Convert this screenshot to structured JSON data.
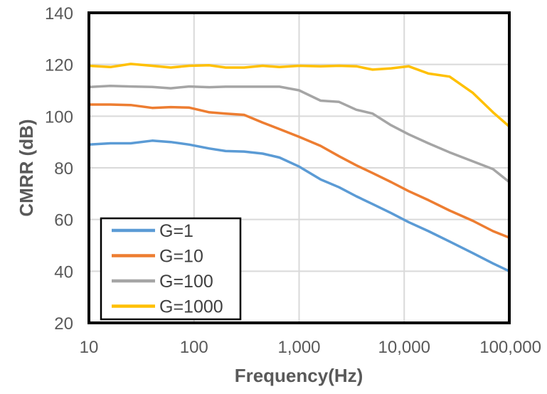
{
  "chart_data": {
    "type": "line",
    "title": "",
    "xlabel": "Frequency(Hz)",
    "ylabel": "CMRR (dB)",
    "xscale": "log",
    "xlim": [
      10,
      100000
    ],
    "ylim": [
      20,
      140
    ],
    "xticks": [
      10,
      100,
      1000,
      10000,
      100000
    ],
    "xtick_labels": [
      "10",
      "100",
      "1,000",
      "10,000",
      "100,000"
    ],
    "yticks": [
      20,
      40,
      60,
      80,
      100,
      120,
      140
    ],
    "ytick_labels": [
      "20",
      "40",
      "60",
      "80",
      "100",
      "120",
      "140"
    ],
    "grid": true,
    "legend_position": "bottom-left",
    "series": [
      {
        "name": "G=1",
        "color": "#5B9BD5",
        "x": [
          10,
          16,
          25,
          40,
          60,
          90,
          140,
          200,
          300,
          450,
          650,
          1000,
          1600,
          2400,
          3500,
          5000,
          7500,
          11000,
          17000,
          27000,
          45000,
          70000,
          100000
        ],
        "y": [
          89,
          89.5,
          89.5,
          90.5,
          90,
          89,
          87.5,
          86.5,
          86.3,
          85.5,
          84,
          80.5,
          75.5,
          72.5,
          69,
          66,
          62.5,
          59,
          55.5,
          51.5,
          47,
          43,
          40
        ]
      },
      {
        "name": "G=10",
        "color": "#ED7D31",
        "x": [
          10,
          16,
          25,
          40,
          60,
          90,
          140,
          200,
          300,
          450,
          650,
          1000,
          1600,
          2400,
          3500,
          5000,
          7500,
          11000,
          17000,
          27000,
          45000,
          70000,
          100000
        ],
        "y": [
          104.5,
          104.5,
          104.3,
          103.2,
          103.5,
          103.3,
          101.5,
          101,
          100.5,
          97.5,
          95,
          92,
          88.5,
          84.5,
          81,
          78,
          74.5,
          71,
          67.5,
          63.5,
          59.5,
          55.5,
          53
        ]
      },
      {
        "name": "G=100",
        "color": "#A5A5A5",
        "x": [
          10,
          16,
          25,
          40,
          60,
          90,
          140,
          200,
          300,
          450,
          650,
          1000,
          1600,
          2400,
          3500,
          5000,
          7500,
          11000,
          17000,
          27000,
          45000,
          70000,
          100000
        ],
        "y": [
          111.3,
          111.7,
          111.5,
          111.3,
          110.8,
          111.5,
          111.2,
          111.4,
          111.4,
          111.4,
          111.4,
          110,
          106,
          105.5,
          102.5,
          101,
          96.5,
          93,
          89.5,
          86,
          82.5,
          79.5,
          74.5
        ]
      },
      {
        "name": "G=1000",
        "color": "#FFC000",
        "x": [
          10,
          16,
          25,
          40,
          60,
          90,
          140,
          200,
          300,
          450,
          650,
          1000,
          1600,
          2400,
          3500,
          5000,
          7500,
          11000,
          17000,
          27000,
          45000,
          70000,
          100000
        ],
        "y": [
          119.5,
          119,
          120.2,
          119.5,
          118.8,
          119.5,
          119.7,
          118.8,
          118.8,
          119.5,
          119,
          119.5,
          119.3,
          119.5,
          119.3,
          118,
          118.5,
          119.3,
          116.5,
          115.3,
          109,
          101.5,
          96
        ]
      }
    ]
  }
}
